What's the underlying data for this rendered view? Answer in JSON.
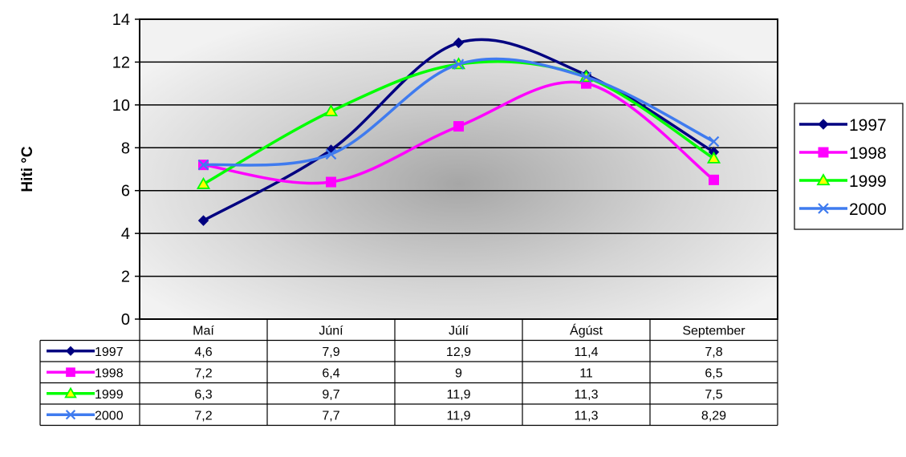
{
  "chart_data": {
    "type": "line",
    "title": "",
    "xlabel": "",
    "ylabel": "Hiti °C",
    "ylim": [
      0,
      14
    ],
    "yticks": [
      0,
      2,
      4,
      6,
      8,
      10,
      12,
      14
    ],
    "grid": true,
    "smoothed": true,
    "legend": "right",
    "data_table": true,
    "categories": [
      "Maí",
      "Júní",
      "Júlí",
      "Ágúst",
      "September"
    ],
    "series": [
      {
        "name": "1997",
        "color": "#000080",
        "marker": "diamond",
        "values": [
          4.6,
          7.9,
          12.9,
          11.4,
          7.8
        ],
        "labels": [
          "4,6",
          "7,9",
          "12,9",
          "11,4",
          "7,8"
        ]
      },
      {
        "name": "1998",
        "color": "#FF00FF",
        "marker": "square",
        "values": [
          7.2,
          6.4,
          9,
          11,
          6.5
        ],
        "labels": [
          "7,2",
          "6,4",
          "9",
          "11",
          "6,5"
        ]
      },
      {
        "name": "1999",
        "color": "#00FF00",
        "marker": "triangle",
        "values": [
          6.3,
          9.7,
          11.9,
          11.3,
          7.5
        ],
        "labels": [
          "6,3",
          "9,7",
          "11,9",
          "11,3",
          "7,5"
        ]
      },
      {
        "name": "2000",
        "color": "#3F7BEF",
        "marker": "x",
        "values": [
          7.2,
          7.7,
          11.9,
          11.3,
          8.29
        ],
        "labels": [
          "7,2",
          "7,7",
          "11,9",
          "11,3",
          "8,29"
        ]
      }
    ]
  }
}
